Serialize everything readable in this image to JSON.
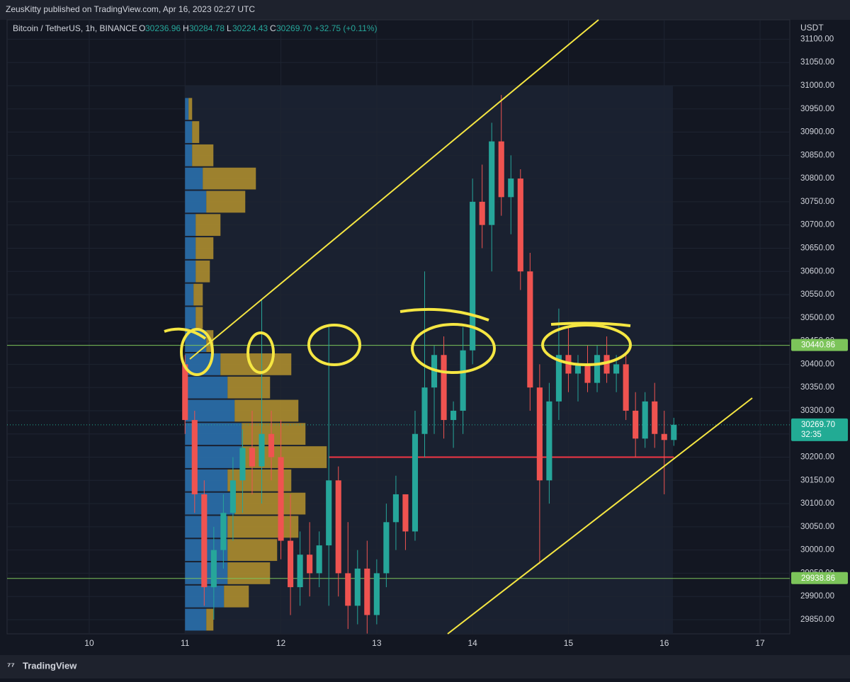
{
  "header": {
    "publisher": "ZeusKitty published on TradingView.com, Apr 16, 2023 02:27 UTC",
    "brand": "TradingView"
  },
  "chart_data": {
    "type": "candlestick",
    "symbol": "Bitcoin / TetherUS, 1h, BINANCE",
    "ohlc_header": {
      "o_label": "O",
      "o": "30236.96",
      "h_label": "H",
      "h": "30284.78",
      "l_label": "L",
      "l": "30224.43",
      "c_label": "C",
      "c": "30269.70",
      "change": "+32.75 (+0.11%)"
    },
    "currency": "USDT",
    "x": [
      11.0,
      11.1,
      11.2,
      11.3,
      11.4,
      11.5,
      11.6,
      11.7,
      11.8,
      11.9,
      12.0,
      12.1,
      12.2,
      12.3,
      12.4,
      12.5,
      12.6,
      12.7,
      12.8,
      12.9,
      13.0,
      13.1,
      13.2,
      13.3,
      13.4,
      13.5,
      13.6,
      13.7,
      13.8,
      13.9,
      14.0,
      14.1,
      14.2,
      14.3,
      14.4,
      14.5,
      14.6,
      14.7,
      14.8,
      14.9,
      15.0,
      15.1,
      15.2,
      15.3,
      15.4,
      15.5,
      15.6,
      15.7,
      15.8,
      15.9,
      16.0,
      16.1
    ],
    "open": [
      30400,
      30280,
      30120,
      29920,
      30000,
      30080,
      30150,
      30220,
      30180,
      30250,
      30200,
      30020,
      29920,
      29990,
      29950,
      30010,
      30150,
      29950,
      29880,
      29960,
      29860,
      29950,
      30060,
      30120,
      30040,
      30250,
      30350,
      30420,
      30280,
      30300,
      30430,
      30750,
      30700,
      30880,
      30760,
      30800,
      30600,
      30350,
      30150,
      30320,
      30420,
      30380,
      30400,
      30360,
      30420,
      30380,
      30400,
      30300,
      30240,
      30320,
      30250,
      30236.96
    ],
    "high": [
      30420,
      30300,
      30150,
      30050,
      30120,
      30200,
      30260,
      30300,
      30540,
      30300,
      30280,
      30120,
      30040,
      30060,
      30040,
      30480,
      30180,
      30060,
      30000,
      30020,
      29980,
      30100,
      30160,
      30120,
      30300,
      30600,
      30440,
      30460,
      30320,
      30480,
      30800,
      30830,
      30920,
      30980,
      30850,
      30820,
      30640,
      30400,
      30360,
      30520,
      30480,
      30420,
      30440,
      30440,
      30460,
      30420,
      30420,
      30340,
      30340,
      30360,
      30300,
      30284.78
    ],
    "low": [
      30250,
      30080,
      29880,
      29850,
      29960,
      30020,
      30080,
      30120,
      30100,
      30150,
      29980,
      29860,
      29880,
      29900,
      29920,
      29880,
      29900,
      29830,
      29840,
      29820,
      29840,
      29920,
      30000,
      30000,
      30020,
      30200,
      30250,
      30240,
      30220,
      30250,
      30400,
      30650,
      30600,
      30720,
      30680,
      30560,
      30300,
      29970,
      30100,
      30280,
      30340,
      30320,
      30340,
      30340,
      30360,
      30340,
      30280,
      30200,
      30220,
      30220,
      30120,
      30224.43
    ],
    "close": [
      30280,
      30120,
      29920,
      30000,
      30080,
      30150,
      30220,
      30180,
      30250,
      30200,
      30020,
      29920,
      29990,
      29950,
      30010,
      30150,
      29950,
      29880,
      29960,
      29860,
      29950,
      30060,
      30120,
      30040,
      30250,
      30350,
      30420,
      30280,
      30300,
      30430,
      30750,
      30700,
      30880,
      30760,
      30800,
      30600,
      30350,
      30150,
      30320,
      30420,
      30380,
      30400,
      30360,
      30420,
      30380,
      30400,
      30300,
      30240,
      30320,
      30250,
      30236.96,
      30269.7
    ],
    "up_color": "#26a69a",
    "down_color": "#ef5350",
    "xlim": [
      9.143,
      17.31
    ],
    "xticks": [
      10,
      11,
      12,
      13,
      14,
      15,
      16,
      17
    ],
    "ylim": [
      29819.5,
      31141.8
    ],
    "yticks": [
      {
        "value": 29850,
        "label": "29850.00"
      },
      {
        "value": 29900,
        "label": "29900.00"
      },
      {
        "value": 29950,
        "label": "29950.00"
      },
      {
        "value": 30000,
        "label": "30000.00"
      },
      {
        "value": 30050,
        "label": "30050.00"
      },
      {
        "value": 30100,
        "label": "30100.00"
      },
      {
        "value": 30150,
        "label": "30150.00"
      },
      {
        "value": 30200,
        "label": "30200.00"
      },
      {
        "value": 30250,
        "label": "30250.00"
      },
      {
        "value": 30300,
        "label": "30300.00"
      },
      {
        "value": 30350,
        "label": "30350.00"
      },
      {
        "value": 30400,
        "label": "30400.00"
      },
      {
        "value": 30450,
        "label": "30450.00"
      },
      {
        "value": 30500,
        "label": "30500.00"
      },
      {
        "value": 30550,
        "label": "30550.00"
      },
      {
        "value": 30600,
        "label": "30600.00"
      },
      {
        "value": 30650,
        "label": "30650.00"
      },
      {
        "value": 30700,
        "label": "30700.00"
      },
      {
        "value": 30750,
        "label": "30750.00"
      },
      {
        "value": 30800,
        "label": "30800.00"
      },
      {
        "value": 30850,
        "label": "30850.00"
      },
      {
        "value": 30900,
        "label": "30900.00"
      },
      {
        "value": 30950,
        "label": "30950.00"
      },
      {
        "value": 31000,
        "label": "31000.00"
      },
      {
        "value": 31050,
        "label": "31050.00"
      },
      {
        "value": 31100,
        "label": "31100.00"
      }
    ],
    "grid": true,
    "price_lines": [
      {
        "value": 30440.86,
        "color": "#7cc45a"
      },
      {
        "value": 29938.86,
        "color": "#7cc45a"
      },
      {
        "value": 30269.7,
        "label": "30269.70",
        "countdown": "32:35",
        "color": "#22ab94"
      }
    ],
    "support_line": {
      "value": 30200,
      "from": 12.5,
      "to": 16.1,
      "color": "#f23645"
    },
    "volume_profile": {
      "levels": [
        29850,
        29900,
        29950,
        30000,
        30050,
        30100,
        30150,
        30200,
        30250,
        30300,
        30350,
        30400,
        30450,
        30500,
        30550,
        30600,
        30650,
        30700,
        30750,
        30800,
        30850,
        30900,
        30950
      ],
      "up": [
        30,
        55,
        60,
        60,
        60,
        70,
        60,
        80,
        80,
        70,
        60,
        50,
        30,
        15,
        12,
        15,
        15,
        15,
        30,
        25,
        10,
        10,
        5
      ],
      "down": [
        10,
        35,
        60,
        70,
        100,
        100,
        90,
        120,
        90,
        90,
        60,
        100,
        10,
        10,
        13,
        20,
        25,
        35,
        55,
        75,
        30,
        10,
        5
      ],
      "up_color": "#2e7fc4",
      "down_color": "#c9a22e"
    }
  }
}
